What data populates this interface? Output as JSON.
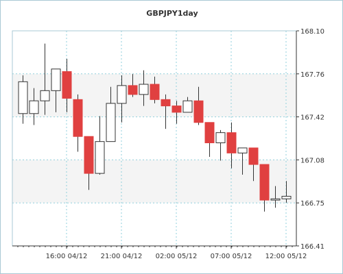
{
  "chart_data": {
    "type": "candlestick",
    "title": "GBPJPY1day",
    "y_ticks": [
      "168.10",
      "167.76",
      "167.42",
      "167.08",
      "166.75",
      "166.41"
    ],
    "ylim": [
      166.41,
      168.1
    ],
    "x_ticks": [
      "16:00 04/12",
      "21:00 04/12",
      "02:00 05/12",
      "07:00 05/12",
      "12:00 05/12"
    ],
    "grid": true,
    "colors": {
      "background": "#ffffff",
      "plot_band": "#f4f4f4",
      "border": "#a9c8d4",
      "grid": "#8fcfdc",
      "axis": "#333333",
      "up_fill": "#ffffff",
      "down_fill": "#e04040",
      "wick": "#333333",
      "text": "#333333"
    },
    "candles": [
      {
        "open": 167.45,
        "high": 167.75,
        "low": 167.37,
        "close": 167.7
      },
      {
        "open": 167.45,
        "high": 167.65,
        "low": 167.36,
        "close": 167.55
      },
      {
        "open": 167.55,
        "high": 168.0,
        "low": 167.44,
        "close": 167.63
      },
      {
        "open": 167.63,
        "high": 167.8,
        "low": 167.46,
        "close": 167.8
      },
      {
        "open": 167.78,
        "high": 167.88,
        "low": 167.46,
        "close": 167.57
      },
      {
        "open": 167.56,
        "high": 167.6,
        "low": 167.15,
        "close": 167.27
      },
      {
        "open": 167.27,
        "high": 167.27,
        "low": 166.85,
        "close": 166.98
      },
      {
        "open": 166.98,
        "high": 167.43,
        "low": 166.97,
        "close": 167.23
      },
      {
        "open": 167.23,
        "high": 167.66,
        "low": 167.23,
        "close": 167.53
      },
      {
        "open": 167.53,
        "high": 167.75,
        "low": 167.38,
        "close": 167.67
      },
      {
        "open": 167.67,
        "high": 167.76,
        "low": 167.58,
        "close": 167.6
      },
      {
        "open": 167.6,
        "high": 167.79,
        "low": 167.51,
        "close": 167.68
      },
      {
        "open": 167.68,
        "high": 167.74,
        "low": 167.53,
        "close": 167.56
      },
      {
        "open": 167.56,
        "high": 167.6,
        "low": 167.33,
        "close": 167.51
      },
      {
        "open": 167.51,
        "high": 167.55,
        "low": 167.37,
        "close": 167.46
      },
      {
        "open": 167.46,
        "high": 167.58,
        "low": 167.46,
        "close": 167.55
      },
      {
        "open": 167.55,
        "high": 167.66,
        "low": 167.36,
        "close": 167.38
      },
      {
        "open": 167.38,
        "high": 167.38,
        "low": 167.11,
        "close": 167.22
      },
      {
        "open": 167.22,
        "high": 167.32,
        "low": 167.08,
        "close": 167.3
      },
      {
        "open": 167.3,
        "high": 167.38,
        "low": 167.02,
        "close": 167.14
      },
      {
        "open": 167.14,
        "high": 167.18,
        "low": 166.97,
        "close": 167.18
      },
      {
        "open": 167.18,
        "high": 167.18,
        "low": 166.92,
        "close": 167.05
      },
      {
        "open": 167.05,
        "high": 167.05,
        "low": 166.68,
        "close": 166.77
      },
      {
        "open": 166.77,
        "high": 166.88,
        "low": 166.71,
        "close": 166.78
      },
      {
        "open": 166.78,
        "high": 166.92,
        "low": 166.75,
        "close": 166.8
      }
    ]
  }
}
